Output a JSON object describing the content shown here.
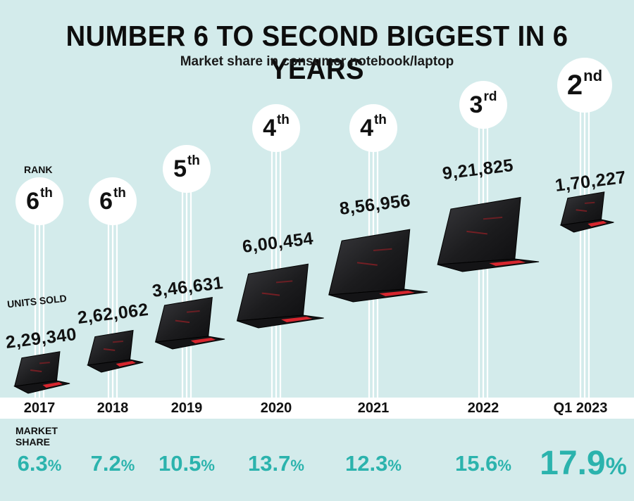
{
  "chart_data": {
    "type": "bar",
    "title": "NUMBER 6 TO SECOND BIGGEST IN 6 YEARS",
    "subtitle": "Market share in consumer notebook/laptop",
    "rank_caption": "RANK",
    "units_caption": "UNITS SOLD",
    "share_caption_line1": "MARKET",
    "share_caption_line2": "SHARE",
    "categories": [
      "2017",
      "2018",
      "2019",
      "2020",
      "2021",
      "2022",
      "Q1 2023"
    ],
    "series": [
      {
        "name": "Units sold",
        "values": [
          229340,
          262062,
          346631,
          600454,
          856956,
          921825,
          170227
        ],
        "labels": [
          "2,29,340",
          "2,62,062",
          "3,46,631",
          "6,00,454",
          "8,56,956",
          "9,21,825",
          "1,70,227"
        ]
      },
      {
        "name": "Market share (%)",
        "values": [
          6.3,
          7.2,
          10.5,
          13.7,
          12.3,
          15.6,
          17.9
        ]
      },
      {
        "name": "Rank",
        "values": [
          6,
          6,
          5,
          4,
          4,
          3,
          2
        ],
        "suffixes": [
          "th",
          "th",
          "th",
          "th",
          "th",
          "rd",
          "nd"
        ]
      }
    ],
    "share_unit": "%",
    "colors": {
      "background": "#d3ebeb",
      "accent": "#2bb3ad",
      "laptop": "#1c1c1e",
      "keyboard_glow": "#d7262e"
    }
  }
}
